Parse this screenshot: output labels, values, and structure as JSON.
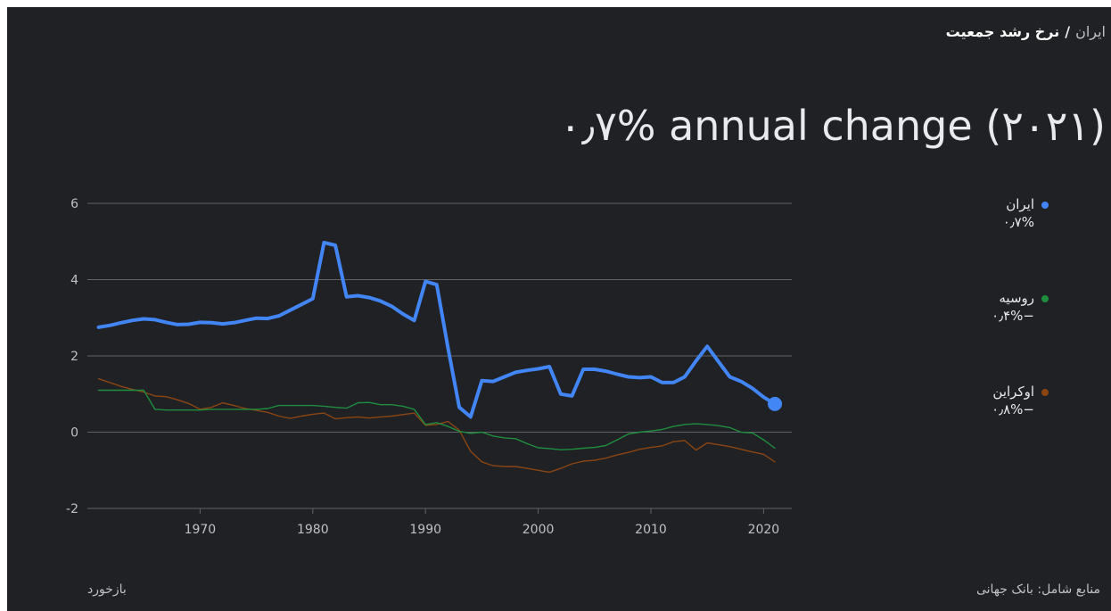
{
  "breadcrumb": {
    "parent": "ایران",
    "separator": "/",
    "current": "نرخ رشد جمعیت"
  },
  "headline": "۰٫۷% annual change (۲۰۲۱)",
  "footer": {
    "feedback": "بازخورد",
    "sources": "منابع شامل: بانک جهانی"
  },
  "legend": [
    {
      "name": "ایران",
      "value": "۰٫۷%",
      "color": "#4285f4"
    },
    {
      "name": "روسیه",
      "value": "−۰٫۴%",
      "color": "#1e8e3e"
    },
    {
      "name": "اوکراین",
      "value": "−۰٫۸%",
      "color": "#8b4513"
    }
  ],
  "chart_data": {
    "type": "line",
    "x": [
      1961,
      1962,
      1963,
      1964,
      1965,
      1966,
      1967,
      1968,
      1969,
      1970,
      1971,
      1972,
      1973,
      1974,
      1975,
      1976,
      1977,
      1978,
      1979,
      1980,
      1981,
      1982,
      1983,
      1984,
      1985,
      1986,
      1987,
      1988,
      1989,
      1990,
      1991,
      1992,
      1993,
      1994,
      1995,
      1996,
      1997,
      1998,
      1999,
      2000,
      2001,
      2002,
      2003,
      2004,
      2005,
      2006,
      2007,
      2008,
      2009,
      2010,
      2011,
      2012,
      2013,
      2014,
      2015,
      2016,
      2017,
      2018,
      2019,
      2020,
      2021
    ],
    "series": [
      {
        "name": "ایران",
        "color": "#4285f4",
        "values": [
          2.75,
          2.8,
          2.87,
          2.93,
          2.97,
          2.95,
          2.88,
          2.82,
          2.83,
          2.88,
          2.87,
          2.84,
          2.87,
          2.93,
          2.99,
          2.98,
          3.05,
          3.2,
          3.35,
          3.5,
          4.97,
          4.9,
          3.55,
          3.58,
          3.53,
          3.44,
          3.3,
          3.1,
          2.93,
          3.95,
          3.87,
          2.2,
          0.65,
          0.4,
          1.35,
          1.33,
          1.45,
          1.57,
          1.62,
          1.66,
          1.72,
          1.0,
          0.95,
          1.65,
          1.65,
          1.6,
          1.52,
          1.45,
          1.43,
          1.45,
          1.3,
          1.3,
          1.45,
          1.87,
          2.25,
          1.85,
          1.45,
          1.33,
          1.15,
          0.92,
          0.74
        ]
      },
      {
        "name": "روسیه",
        "color": "#1e8e3e",
        "values": [
          1.1,
          1.1,
          1.1,
          1.1,
          1.1,
          0.6,
          0.58,
          0.58,
          0.58,
          0.58,
          0.6,
          0.6,
          0.6,
          0.6,
          0.6,
          0.62,
          0.7,
          0.7,
          0.7,
          0.7,
          0.68,
          0.65,
          0.63,
          0.77,
          0.78,
          0.72,
          0.72,
          0.68,
          0.6,
          0.2,
          0.25,
          0.15,
          0.02,
          -0.03,
          0.0,
          -0.1,
          -0.15,
          -0.17,
          -0.3,
          -0.41,
          -0.43,
          -0.46,
          -0.45,
          -0.42,
          -0.4,
          -0.35,
          -0.2,
          -0.05,
          0.0,
          0.03,
          0.07,
          0.15,
          0.2,
          0.22,
          0.2,
          0.17,
          0.12,
          0.0,
          -0.02,
          -0.2,
          -0.42
        ]
      },
      {
        "name": "اوکراین",
        "color": "#8b4513",
        "values": [
          1.4,
          1.3,
          1.2,
          1.12,
          1.05,
          0.95,
          0.93,
          0.85,
          0.75,
          0.6,
          0.65,
          0.77,
          0.7,
          0.62,
          0.57,
          0.52,
          0.42,
          0.36,
          0.42,
          0.47,
          0.5,
          0.35,
          0.38,
          0.4,
          0.37,
          0.4,
          0.42,
          0.46,
          0.5,
          0.18,
          0.2,
          0.28,
          0.05,
          -0.5,
          -0.78,
          -0.88,
          -0.9,
          -0.9,
          -0.95,
          -1.0,
          -1.05,
          -0.95,
          -0.83,
          -0.76,
          -0.74,
          -0.68,
          -0.6,
          -0.53,
          -0.45,
          -0.4,
          -0.36,
          -0.25,
          -0.22,
          -0.47,
          -0.28,
          -0.33,
          -0.38,
          -0.45,
          -0.52,
          -0.58,
          -0.78
        ]
      }
    ],
    "ylim": [
      -2,
      6
    ],
    "yticks": [
      -2,
      0,
      2,
      4,
      6
    ],
    "xticks": [
      1970,
      1980,
      1990,
      2000,
      2010,
      2020
    ],
    "xlim": [
      1960,
      2022.5
    ],
    "grid": true,
    "legend_position": "right",
    "highlight_last_point_series": 0
  }
}
